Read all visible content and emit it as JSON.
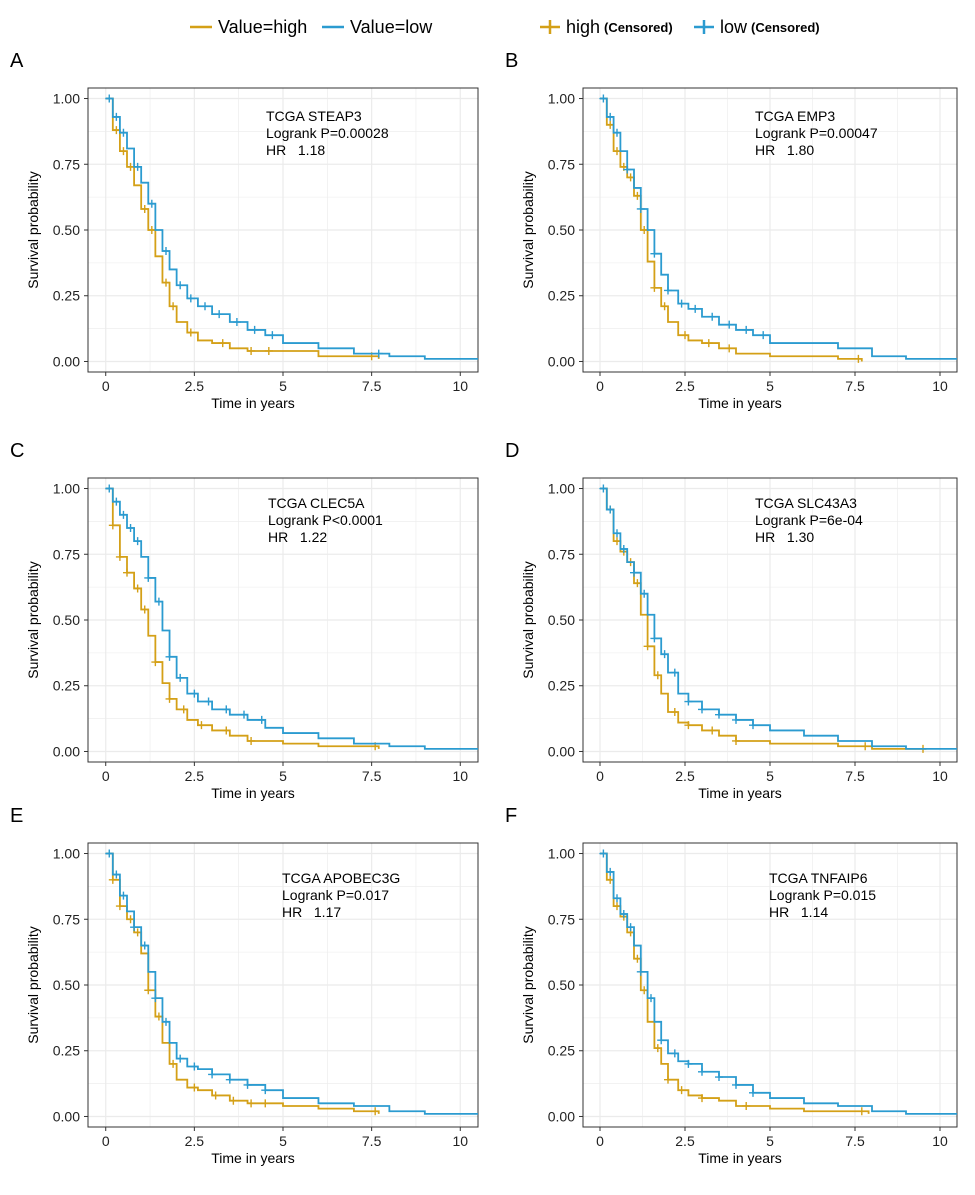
{
  "legend": {
    "entries": [
      {
        "label": "Value=high",
        "color": "#d4a017",
        "kind": "line"
      },
      {
        "label": "Value=low",
        "color": "#2b9bd0",
        "kind": "line"
      },
      {
        "label": "high",
        "suffix": "(Censored)",
        "color": "#d4a017",
        "kind": "censored"
      },
      {
        "label": "low",
        "suffix": "(Censored)",
        "color": "#2b9bd0",
        "kind": "censored"
      }
    ]
  },
  "colors": {
    "high": "#d4a017",
    "low": "#2b9bd0",
    "grid": "#ebebeb",
    "axis": "#333333"
  },
  "chart_data": [
    {
      "panel": "A",
      "type": "line",
      "title": "TCGA STEAP3",
      "logrank": "Logrank P=0.00028",
      "hr": "HR   1.18",
      "xlabel": "Time in years",
      "ylabel": "Survival probability",
      "xlim": [
        -0.5,
        10.5
      ],
      "ylim": [
        -0.04,
        1.04
      ],
      "xticks": [
        0,
        2.5,
        5,
        7.5,
        10
      ],
      "xtick_labels": [
        "0",
        "2.5",
        "5",
        "7.5",
        "10"
      ],
      "yticks": [
        0,
        0.25,
        0.5,
        0.75,
        1.0
      ],
      "ytick_labels": [
        "0.00",
        "0.25",
        "0.50",
        "0.75",
        "1.00"
      ],
      "series": [
        {
          "name": "high",
          "x": [
            0,
            0.2,
            0.4,
            0.6,
            0.8,
            1.0,
            1.2,
            1.4,
            1.6,
            1.8,
            2.0,
            2.3,
            2.6,
            3.0,
            3.5,
            4.0,
            5.0,
            6.0,
            7.0,
            7.7
          ],
          "y": [
            1.0,
            0.88,
            0.8,
            0.74,
            0.67,
            0.58,
            0.5,
            0.4,
            0.3,
            0.21,
            0.15,
            0.11,
            0.08,
            0.07,
            0.05,
            0.04,
            0.04,
            0.02,
            0.02,
            0.01
          ],
          "censored_x": [
            0.3,
            0.5,
            0.7,
            1.1,
            1.3,
            1.7,
            1.9,
            2.4,
            3.3,
            4.1,
            4.6,
            7.5
          ]
        },
        {
          "name": "low",
          "x": [
            0,
            0.2,
            0.4,
            0.6,
            0.8,
            1.0,
            1.2,
            1.4,
            1.6,
            1.8,
            2.0,
            2.3,
            2.6,
            3.0,
            3.5,
            4.0,
            4.5,
            5.0,
            6.0,
            7.0,
            8.0,
            9.0,
            10.5
          ],
          "y": [
            1.0,
            0.93,
            0.87,
            0.81,
            0.74,
            0.68,
            0.6,
            0.5,
            0.42,
            0.35,
            0.29,
            0.24,
            0.21,
            0.18,
            0.15,
            0.12,
            0.1,
            0.07,
            0.05,
            0.03,
            0.02,
            0.01,
            0.01
          ],
          "censored_x": [
            0.1,
            0.3,
            0.5,
            0.9,
            1.3,
            1.7,
            2.1,
            2.4,
            2.8,
            3.2,
            3.7,
            4.2,
            4.7,
            7.7
          ]
        }
      ]
    },
    {
      "panel": "B",
      "type": "line",
      "title": "TCGA EMP3",
      "logrank": "Logrank P=0.00047",
      "hr": "HR   1.80",
      "xlabel": "Time in years",
      "ylabel": "Survival probability",
      "xlim": [
        -0.5,
        10.5
      ],
      "ylim": [
        -0.04,
        1.04
      ],
      "xticks": [
        0,
        2.5,
        5,
        7.5,
        10
      ],
      "xtick_labels": [
        "0",
        "2.5",
        "5",
        "7.5",
        "10"
      ],
      "yticks": [
        0,
        0.25,
        0.5,
        0.75,
        1.0
      ],
      "ytick_labels": [
        "0.00",
        "0.25",
        "0.50",
        "0.75",
        "1.00"
      ],
      "series": [
        {
          "name": "high",
          "x": [
            0,
            0.2,
            0.4,
            0.6,
            0.8,
            1.0,
            1.2,
            1.4,
            1.6,
            1.8,
            2.0,
            2.3,
            2.6,
            3.0,
            3.5,
            4.0,
            5.0,
            6.0,
            7.0,
            7.7
          ],
          "y": [
            1.0,
            0.9,
            0.8,
            0.74,
            0.7,
            0.63,
            0.5,
            0.38,
            0.28,
            0.21,
            0.15,
            0.1,
            0.08,
            0.07,
            0.05,
            0.03,
            0.02,
            0.02,
            0.01,
            0.0
          ],
          "censored_x": [
            0.3,
            0.5,
            0.7,
            0.9,
            1.1,
            1.3,
            1.6,
            1.9,
            2.5,
            3.2,
            3.8,
            7.6
          ]
        },
        {
          "name": "low",
          "x": [
            0,
            0.2,
            0.4,
            0.6,
            0.8,
            1.0,
            1.2,
            1.4,
            1.6,
            1.8,
            2.0,
            2.3,
            2.6,
            3.0,
            3.5,
            4.0,
            4.5,
            5.0,
            6.0,
            7.0,
            8.0,
            9.0,
            10.5
          ],
          "y": [
            1.0,
            0.93,
            0.87,
            0.8,
            0.73,
            0.66,
            0.58,
            0.5,
            0.41,
            0.33,
            0.27,
            0.22,
            0.2,
            0.17,
            0.14,
            0.12,
            0.1,
            0.07,
            0.07,
            0.05,
            0.02,
            0.01,
            0.01
          ],
          "censored_x": [
            0.1,
            0.3,
            0.5,
            0.8,
            1.2,
            1.6,
            2.0,
            2.4,
            2.8,
            3.3,
            3.8,
            4.3,
            4.8
          ]
        }
      ]
    },
    {
      "panel": "C",
      "type": "line",
      "title": "TCGA CLEC5A",
      "logrank": "Logrank P<0.0001",
      "hr": "HR   1.22",
      "xlabel": "Time in years",
      "ylabel": "Survival probability",
      "xlim": [
        -0.5,
        10.5
      ],
      "ylim": [
        -0.04,
        1.04
      ],
      "xticks": [
        0,
        2.5,
        5,
        7.5,
        10
      ],
      "xtick_labels": [
        "0",
        "2.5",
        "5",
        "7.5",
        "10"
      ],
      "yticks": [
        0,
        0.25,
        0.5,
        0.75,
        1.0
      ],
      "ytick_labels": [
        "0.00",
        "0.25",
        "0.50",
        "0.75",
        "1.00"
      ],
      "series": [
        {
          "name": "high",
          "x": [
            0,
            0.2,
            0.4,
            0.6,
            0.8,
            1.0,
            1.2,
            1.4,
            1.6,
            1.8,
            2.0,
            2.3,
            2.6,
            3.0,
            3.5,
            4.0,
            5.0,
            6.0,
            7.0,
            7.7
          ],
          "y": [
            1.0,
            0.86,
            0.74,
            0.68,
            0.62,
            0.54,
            0.44,
            0.34,
            0.26,
            0.2,
            0.16,
            0.12,
            0.1,
            0.08,
            0.06,
            0.04,
            0.03,
            0.02,
            0.02,
            0.01
          ],
          "censored_x": [
            0.2,
            0.4,
            0.6,
            0.9,
            1.1,
            1.4,
            1.8,
            2.2,
            2.7,
            3.4,
            4.1,
            7.6
          ]
        },
        {
          "name": "low",
          "x": [
            0,
            0.2,
            0.4,
            0.6,
            0.8,
            1.0,
            1.2,
            1.4,
            1.6,
            1.8,
            2.0,
            2.3,
            2.6,
            3.0,
            3.5,
            4.0,
            4.5,
            5.0,
            6.0,
            7.0,
            8.0,
            9.0,
            10.5
          ],
          "y": [
            1.0,
            0.95,
            0.9,
            0.85,
            0.8,
            0.74,
            0.66,
            0.57,
            0.46,
            0.36,
            0.28,
            0.22,
            0.19,
            0.16,
            0.14,
            0.12,
            0.09,
            0.07,
            0.05,
            0.03,
            0.02,
            0.01,
            0.01
          ],
          "censored_x": [
            0.1,
            0.3,
            0.5,
            0.7,
            0.9,
            1.2,
            1.5,
            1.8,
            2.1,
            2.5,
            2.9,
            3.4,
            3.9,
            4.4
          ]
        }
      ]
    },
    {
      "panel": "D",
      "type": "line",
      "title": "TCGA SLC43A3",
      "logrank": "Logrank P=6e-04",
      "hr": "HR   1.30",
      "xlabel": "Time in years",
      "ylabel": "Survival probability",
      "xlim": [
        -0.5,
        10.5
      ],
      "ylim": [
        -0.04,
        1.04
      ],
      "xticks": [
        0,
        2.5,
        5,
        7.5,
        10
      ],
      "xtick_labels": [
        "0",
        "2.5",
        "5",
        "7.5",
        "10"
      ],
      "yticks": [
        0,
        0.25,
        0.5,
        0.75,
        1.0
      ],
      "ytick_labels": [
        "0.00",
        "0.25",
        "0.50",
        "0.75",
        "1.00"
      ],
      "series": [
        {
          "name": "high",
          "x": [
            0,
            0.2,
            0.4,
            0.6,
            0.8,
            1.0,
            1.2,
            1.4,
            1.6,
            1.8,
            2.0,
            2.3,
            2.6,
            3.0,
            3.5,
            4.0,
            5.0,
            6.0,
            7.0,
            8.0,
            9.6
          ],
          "y": [
            1.0,
            0.92,
            0.8,
            0.76,
            0.72,
            0.64,
            0.52,
            0.4,
            0.29,
            0.22,
            0.15,
            0.11,
            0.1,
            0.08,
            0.06,
            0.04,
            0.03,
            0.03,
            0.02,
            0.01,
            0.01
          ],
          "censored_x": [
            0.3,
            0.5,
            0.7,
            0.9,
            1.1,
            1.4,
            1.7,
            2.2,
            2.6,
            3.3,
            4.0,
            7.8,
            9.5
          ]
        },
        {
          "name": "low",
          "x": [
            0,
            0.2,
            0.4,
            0.6,
            0.8,
            1.0,
            1.2,
            1.4,
            1.6,
            1.8,
            2.0,
            2.3,
            2.6,
            3.0,
            3.5,
            4.0,
            4.5,
            5.0,
            6.0,
            7.0,
            8.0,
            9.0,
            10.5
          ],
          "y": [
            1.0,
            0.92,
            0.83,
            0.77,
            0.72,
            0.68,
            0.6,
            0.52,
            0.43,
            0.37,
            0.3,
            0.22,
            0.19,
            0.16,
            0.14,
            0.12,
            0.1,
            0.08,
            0.06,
            0.04,
            0.02,
            0.01,
            0.01
          ],
          "censored_x": [
            0.1,
            0.3,
            0.5,
            0.7,
            1.0,
            1.3,
            1.6,
            1.9,
            2.2,
            2.6,
            3.0,
            3.5,
            4.0,
            4.5
          ]
        }
      ]
    },
    {
      "panel": "E",
      "type": "line",
      "title": "TCGA APOBEC3G",
      "logrank": "Logrank P=0.017",
      "hr": "HR   1.17",
      "xlabel": "Time in years",
      "ylabel": "Survival probability",
      "xlim": [
        -0.5,
        10.5
      ],
      "ylim": [
        -0.04,
        1.04
      ],
      "xticks": [
        0,
        2.5,
        5,
        7.5,
        10
      ],
      "xtick_labels": [
        "0",
        "2.5",
        "5",
        "7.5",
        "10"
      ],
      "yticks": [
        0,
        0.25,
        0.5,
        0.75,
        1.0
      ],
      "ytick_labels": [
        "0.00",
        "0.25",
        "0.50",
        "0.75",
        "1.00"
      ],
      "series": [
        {
          "name": "high",
          "x": [
            0,
            0.2,
            0.4,
            0.6,
            0.8,
            1.0,
            1.2,
            1.4,
            1.6,
            1.8,
            2.0,
            2.3,
            2.6,
            3.0,
            3.5,
            4.0,
            5.0,
            6.0,
            7.0,
            7.7
          ],
          "y": [
            1.0,
            0.9,
            0.8,
            0.75,
            0.7,
            0.62,
            0.48,
            0.38,
            0.28,
            0.2,
            0.14,
            0.11,
            0.1,
            0.08,
            0.06,
            0.05,
            0.04,
            0.03,
            0.02,
            0.01
          ],
          "censored_x": [
            0.2,
            0.4,
            0.7,
            0.9,
            1.2,
            1.5,
            1.9,
            2.5,
            3.1,
            3.6,
            4.1,
            4.5,
            7.6
          ]
        },
        {
          "name": "low",
          "x": [
            0,
            0.2,
            0.4,
            0.6,
            0.8,
            1.0,
            1.2,
            1.4,
            1.6,
            1.8,
            2.0,
            2.3,
            2.6,
            3.0,
            3.5,
            4.0,
            4.5,
            5.0,
            6.0,
            7.0,
            8.0,
            9.0,
            10.5
          ],
          "y": [
            1.0,
            0.92,
            0.84,
            0.78,
            0.72,
            0.65,
            0.55,
            0.45,
            0.36,
            0.28,
            0.22,
            0.19,
            0.18,
            0.16,
            0.14,
            0.12,
            0.1,
            0.07,
            0.05,
            0.04,
            0.02,
            0.01,
            0.01
          ],
          "censored_x": [
            0.1,
            0.3,
            0.5,
            0.8,
            1.1,
            1.4,
            1.7,
            2.1,
            2.5,
            3.0,
            3.5,
            4.0,
            4.5
          ]
        }
      ]
    },
    {
      "panel": "F",
      "type": "line",
      "title": "TCGA TNFAIP6",
      "logrank": "Logrank P=0.015",
      "hr": "HR   1.14",
      "xlabel": "Time in years",
      "ylabel": "Survival probability",
      "xlim": [
        -0.5,
        10.5
      ],
      "ylim": [
        -0.04,
        1.04
      ],
      "xticks": [
        0,
        2.5,
        5,
        7.5,
        10
      ],
      "xtick_labels": [
        "0",
        "2.5",
        "5",
        "7.5",
        "10"
      ],
      "yticks": [
        0,
        0.25,
        0.5,
        0.75,
        1.0
      ],
      "ytick_labels": [
        "0.00",
        "0.25",
        "0.50",
        "0.75",
        "1.00"
      ],
      "series": [
        {
          "name": "high",
          "x": [
            0,
            0.2,
            0.4,
            0.6,
            0.8,
            1.0,
            1.2,
            1.4,
            1.6,
            1.8,
            2.0,
            2.3,
            2.6,
            3.0,
            3.5,
            4.0,
            5.0,
            6.0,
            7.0,
            7.9
          ],
          "y": [
            1.0,
            0.9,
            0.8,
            0.76,
            0.7,
            0.6,
            0.48,
            0.36,
            0.26,
            0.2,
            0.14,
            0.1,
            0.08,
            0.07,
            0.06,
            0.04,
            0.03,
            0.02,
            0.02,
            0.01
          ],
          "censored_x": [
            0.3,
            0.5,
            0.7,
            0.9,
            1.1,
            1.3,
            1.7,
            2.0,
            2.4,
            3.0,
            4.3,
            7.7
          ]
        },
        {
          "name": "low",
          "x": [
            0,
            0.2,
            0.4,
            0.6,
            0.8,
            1.0,
            1.2,
            1.4,
            1.6,
            1.8,
            2.0,
            2.3,
            2.6,
            3.0,
            3.5,
            4.0,
            4.5,
            5.0,
            6.0,
            7.0,
            8.0,
            9.0,
            10.5
          ],
          "y": [
            1.0,
            0.93,
            0.83,
            0.77,
            0.72,
            0.65,
            0.55,
            0.45,
            0.36,
            0.29,
            0.24,
            0.21,
            0.2,
            0.17,
            0.15,
            0.12,
            0.09,
            0.07,
            0.05,
            0.04,
            0.02,
            0.01,
            0.01
          ],
          "censored_x": [
            0.1,
            0.3,
            0.5,
            0.7,
            0.9,
            1.2,
            1.5,
            1.8,
            2.2,
            2.6,
            3.0,
            3.5,
            4.0,
            4.5
          ]
        }
      ]
    }
  ]
}
